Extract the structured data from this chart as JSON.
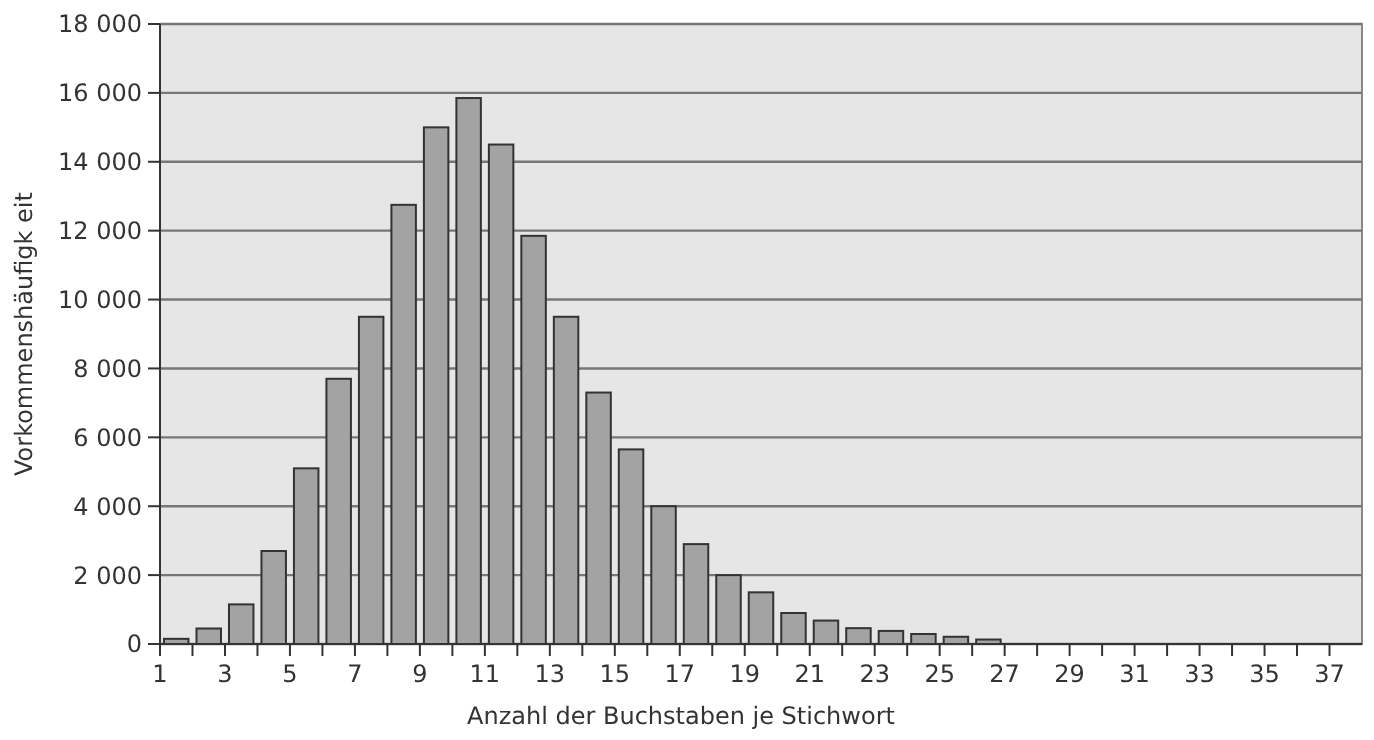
{
  "chart_data": {
    "type": "histogram",
    "xlabel": "Anzahl der Buchstaben je Stichwort",
    "ylabel": "Vorkommenshäufigk eit",
    "bins": [
      1,
      2,
      3,
      4,
      5,
      6,
      7,
      8,
      9,
      10,
      11,
      12,
      13,
      14,
      15,
      16,
      17,
      18,
      19,
      20,
      21,
      22,
      23,
      24,
      25,
      26,
      27
    ],
    "values": [
      150,
      450,
      1150,
      2700,
      5100,
      7700,
      9500,
      12750,
      15000,
      15850,
      14500,
      11850,
      9500,
      7300,
      5650,
      4000,
      2900,
      2000,
      1500,
      900,
      680,
      460,
      380,
      290,
      210,
      130
    ],
    "color": "#a3a3a3",
    "xlim": [
      1,
      38
    ],
    "xticks": [
      1,
      {
        "value": 2,
        "label": null
      },
      3,
      {
        "value": 4,
        "label": null
      },
      5,
      {
        "value": 6,
        "label": null
      },
      7,
      {
        "value": 8,
        "label": null
      },
      9,
      {
        "value": 10,
        "label": null
      },
      11,
      {
        "value": 12,
        "label": null
      },
      13,
      {
        "value": 14,
        "label": null
      },
      15,
      {
        "value": 16,
        "label": null
      },
      17,
      {
        "value": 18,
        "label": null
      },
      19,
      {
        "value": 20,
        "label": null
      },
      21,
      {
        "value": 22,
        "label": null
      },
      23,
      {
        "value": 24,
        "label": null
      },
      25,
      {
        "value": 26,
        "label": null
      },
      27,
      {
        "value": 28,
        "label": null
      },
      29,
      {
        "value": 30,
        "label": null
      },
      31,
      {
        "value": 32,
        "label": null
      },
      33,
      {
        "value": 34,
        "label": null
      },
      35,
      {
        "value": 36,
        "label": null
      },
      37
    ],
    "ylim": [
      0,
      18000
    ],
    "yticks": [
      {
        "value": 0,
        "label": "0"
      },
      {
        "value": 2000,
        "label": "2 000"
      },
      {
        "value": 4000,
        "label": "4 000"
      },
      {
        "value": 6000,
        "label": "6 000"
      },
      {
        "value": 8000,
        "label": "8 000"
      },
      {
        "value": 10000,
        "label": "10 000"
      },
      {
        "value": 12000,
        "label": "12 000"
      },
      {
        "value": 14000,
        "label": "14 000"
      },
      {
        "value": 16000,
        "label": "16 000"
      },
      {
        "value": 18000,
        "label": "18 000"
      }
    ],
    "grid": "y"
  }
}
